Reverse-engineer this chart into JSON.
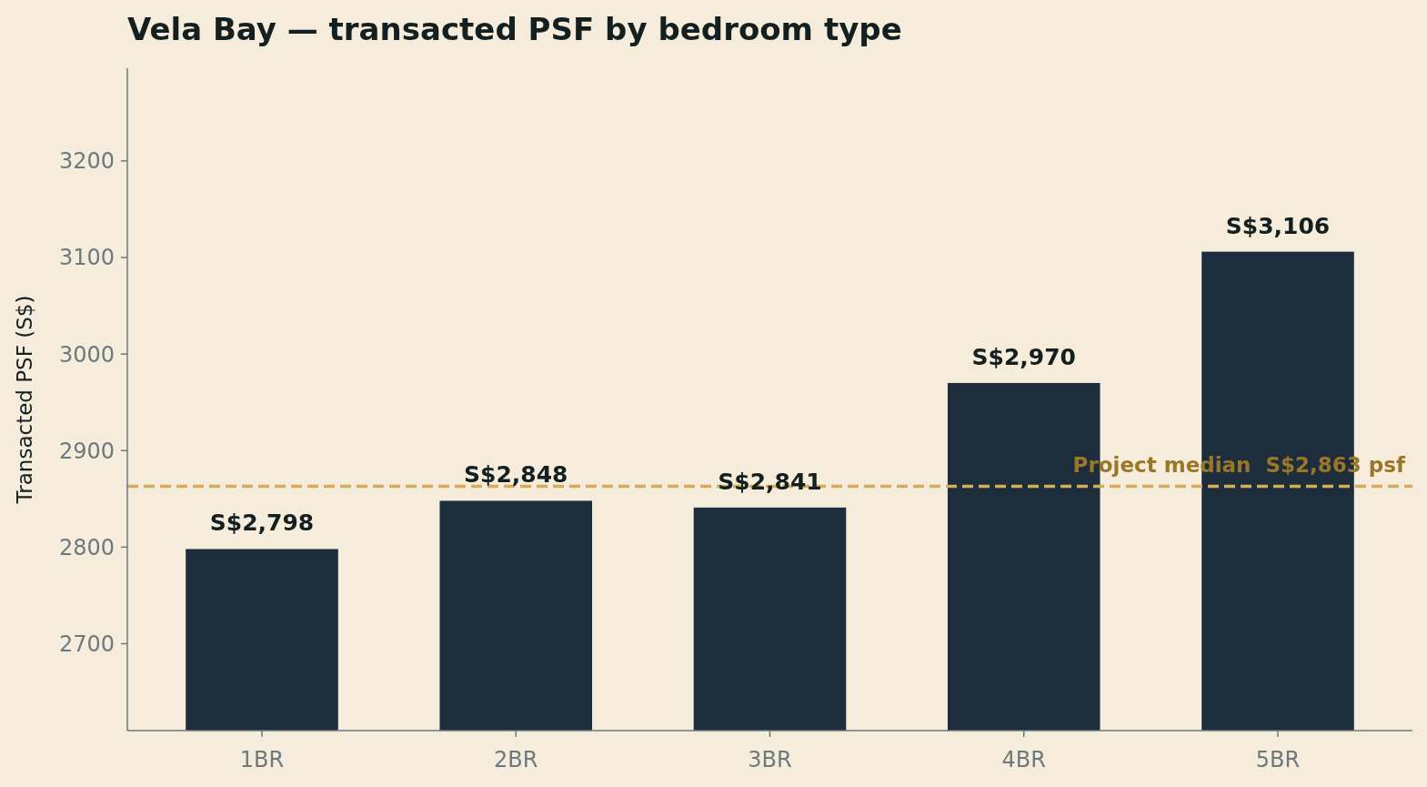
{
  "chart_data": {
    "type": "bar",
    "title": "Vela Bay — transacted PSF by bedroom type",
    "ylabel": "Transacted PSF (S$)",
    "categories": [
      "1BR",
      "2BR",
      "3BR",
      "4BR",
      "5BR"
    ],
    "values": [
      2798,
      2848,
      2841,
      2970,
      3106
    ],
    "value_labels": [
      "S$2,798",
      "S$2,848",
      "S$2,841",
      "S$2,970",
      "S$3,106"
    ],
    "color": "#1e2d3b",
    "ylim": [
      2610,
      3296
    ],
    "yticks": [
      2700,
      2800,
      2900,
      3000,
      3100,
      3200
    ],
    "ref_lines": [
      {
        "axis": "y",
        "value": 2863,
        "label": "Project median  S$2,863 psf",
        "color": "#d4ac5a",
        "line_style": "dashed"
      }
    ],
    "grid": false
  }
}
